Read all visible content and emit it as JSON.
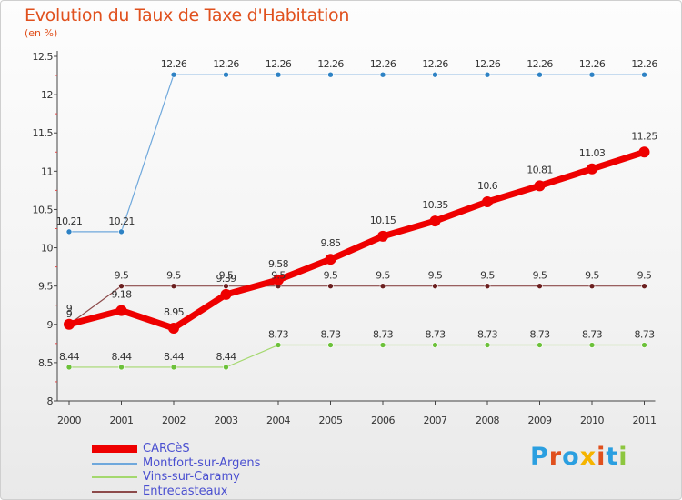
{
  "title": "Evolution du Taux de Taxe d'Habitation",
  "subtitle": "(en %)",
  "brand": {
    "letters": [
      "P",
      "r",
      "o",
      "x",
      "i",
      "t",
      "i"
    ],
    "colors": [
      "#2b9fe0",
      "#e0501d",
      "#2b9fe0",
      "#f5b400",
      "#e0501d",
      "#2b9fe0",
      "#8dc63f"
    ]
  },
  "chart_data": {
    "type": "line",
    "categories": [
      "2000",
      "2001",
      "2002",
      "2003",
      "2004",
      "2005",
      "2006",
      "2007",
      "2008",
      "2009",
      "2010",
      "2011"
    ],
    "ylim": [
      8,
      12.5
    ],
    "yticks": [
      8,
      8.5,
      9,
      9.5,
      10,
      10.5,
      11,
      11.5,
      12,
      12.5
    ],
    "ytick_labels": [
      "8",
      "8.5",
      "9",
      "9.5",
      "10",
      "10.5",
      "11",
      "11.5",
      "12",
      "12.5"
    ],
    "legend_position": "bottom-left",
    "series": [
      {
        "name": "Montfort-sur-Argens",
        "color": "#6fa8dc",
        "marker": "#2e82c4",
        "width": 1.2,
        "r": 3,
        "values": [
          10.21,
          10.21,
          12.26,
          12.26,
          12.26,
          12.26,
          12.26,
          12.26,
          12.26,
          12.26,
          12.26,
          12.26
        ],
        "labels": [
          "10.21",
          "10.21",
          "12.26",
          "12.26",
          "12.26",
          "12.26",
          "12.26",
          "12.26",
          "12.26",
          "12.26",
          "12.26",
          "12.26"
        ]
      },
      {
        "name": "Vins-sur-Caramy",
        "color": "#a4d86e",
        "marker": "#6cc13a",
        "width": 1.2,
        "r": 3,
        "values": [
          8.44,
          8.44,
          8.44,
          8.44,
          8.73,
          8.73,
          8.73,
          8.73,
          8.73,
          8.73,
          8.73,
          8.73
        ],
        "labels": [
          "8.44",
          "8.44",
          "8.44",
          "8.44",
          "8.73",
          "8.73",
          "8.73",
          "8.73",
          "8.73",
          "8.73",
          "8.73",
          "8.73"
        ]
      },
      {
        "name": "Entrecasteaux",
        "color": "#8c4a4a",
        "marker": "#6b1f1f",
        "width": 1.2,
        "r": 3,
        "values": [
          9,
          9.5,
          9.5,
          9.5,
          9.5,
          9.5,
          9.5,
          9.5,
          9.5,
          9.5,
          9.5,
          9.5
        ],
        "labels": [
          "9",
          "9.5",
          "9.5",
          "9.5",
          "9.5",
          "9.5",
          "9.5",
          "9.5",
          "9.5",
          "9.5",
          "9.5",
          "9.5"
        ]
      },
      {
        "name": "CARCèS",
        "color": "#ee0000",
        "marker": "#ee0000",
        "width": 7,
        "r": 6,
        "values": [
          9,
          9.18,
          8.95,
          9.39,
          9.58,
          9.85,
          10.15,
          10.35,
          10.6,
          10.81,
          11.03,
          11.25
        ],
        "labels": [
          "9",
          "9.18",
          "8.95",
          "9.39",
          "9.58",
          "9.85",
          "10.15",
          "10.35",
          "10.6",
          "10.81",
          "11.03",
          "11.25"
        ]
      }
    ]
  }
}
